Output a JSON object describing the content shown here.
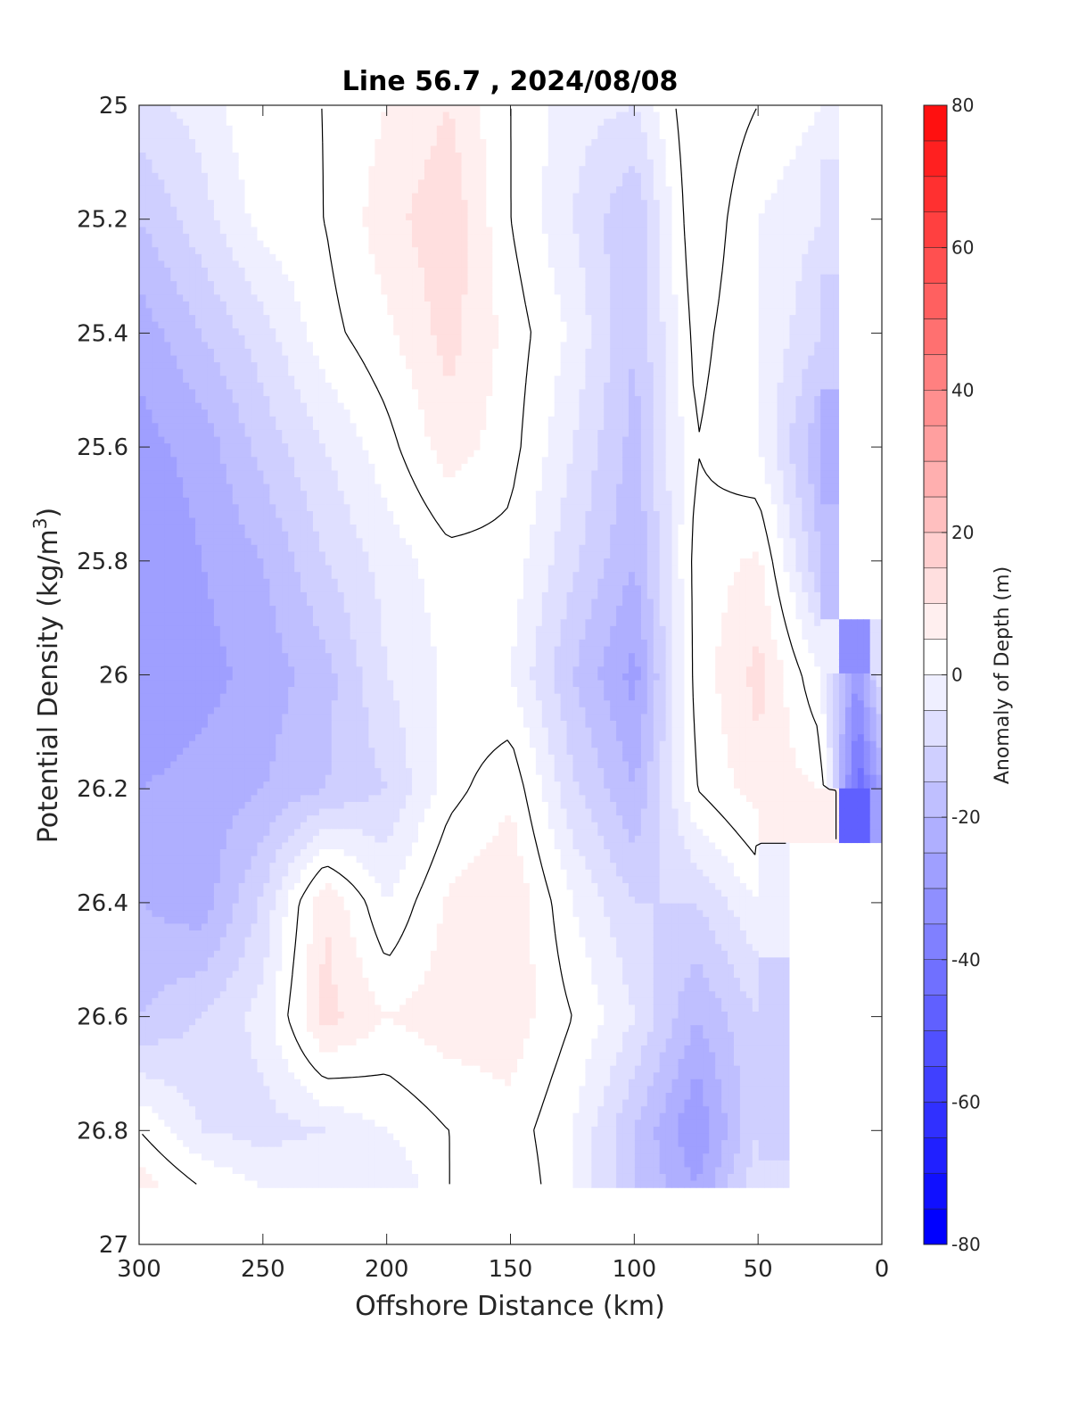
{
  "chart_data": {
    "type": "heatmap",
    "title": "Line 56.7 , 2024/08/08",
    "xlabel": "Offshore Distance (km)",
    "ylabel_main": "Potential Density (kg/m",
    "ylabel_sup": "3",
    "ylabel_close": ")",
    "xlim": [
      300,
      0
    ],
    "ylim": [
      25,
      27
    ],
    "x_ticks": [
      300,
      250,
      200,
      150,
      100,
      50,
      0
    ],
    "x_tick_labels": [
      "300",
      "250",
      "200",
      "150",
      "100",
      "50",
      "0"
    ],
    "y_ticks": [
      25,
      25.2,
      25.4,
      25.6,
      25.8,
      26,
      26.2,
      26.4,
      26.6,
      26.8,
      27
    ],
    "y_tick_labels": [
      "25",
      "25.2",
      "25.4",
      "25.6",
      "25.8",
      "26",
      "26.2",
      "26.4",
      "26.6",
      "26.8",
      "27"
    ],
    "data_bottom": 26.9,
    "colorbar": {
      "label": "Anomaly of Depth (m)",
      "range": [
        -80,
        80
      ],
      "step": 5,
      "ticks": [
        -80,
        -60,
        -40,
        -20,
        0,
        20,
        40,
        60,
        80
      ],
      "tick_labels": [
        "-80",
        "-60",
        "-40",
        "-20",
        "0",
        "20",
        "40",
        "60",
        "80"
      ],
      "neg_color": "#0000ff",
      "pos_color": "#ff0000",
      "zero_color": "#ffffff"
    },
    "zero_contour_color": "#000000",
    "grid": {
      "x": [
        300,
        275,
        250,
        225,
        200,
        175,
        150,
        125,
        100,
        75,
        50,
        25,
        10,
        0
      ],
      "y": [
        25,
        25.2,
        25.4,
        25.6,
        25.8,
        26,
        26.2,
        26.4,
        26.6,
        26.8,
        26.9
      ],
      "z": [
        [
          -12,
          -8,
          0,
          0,
          5,
          10,
          0,
          -8,
          -10,
          5,
          0,
          -5,
          null,
          null
        ],
        [
          -20,
          -12,
          -3,
          0,
          8,
          14,
          0,
          -10,
          -20,
          5,
          -5,
          -10,
          null,
          null
        ],
        [
          -28,
          -20,
          -12,
          -2,
          4,
          12,
          3,
          -6,
          -20,
          2,
          -5,
          -15,
          null,
          null
        ],
        [
          -32,
          -28,
          -18,
          -10,
          -2,
          8,
          2,
          -10,
          -22,
          0,
          -5,
          -25,
          null,
          null
        ],
        [
          -35,
          -30,
          -25,
          -15,
          -8,
          -2,
          -2,
          -14,
          -25,
          2,
          6,
          -20,
          null,
          null
        ],
        [
          -35,
          -32,
          -28,
          -22,
          -10,
          -4,
          -5,
          -20,
          -32,
          2,
          12,
          -5,
          -35,
          -10
        ],
        [
          -30,
          -28,
          -25,
          -20,
          -15,
          -2,
          4,
          -14,
          -25,
          0,
          8,
          5,
          -50,
          -30
        ],
        [
          -25,
          -28,
          -14,
          10,
          -5,
          6,
          10,
          -5,
          -15,
          -15,
          -5,
          null,
          null,
          null
        ],
        [
          -20,
          -15,
          -8,
          12,
          5,
          8,
          8,
          0,
          -10,
          -25,
          -15,
          null,
          null,
          null
        ],
        [
          0,
          -10,
          -12,
          -10,
          -5,
          0,
          3,
          -5,
          -20,
          -35,
          -15,
          null,
          null,
          null
        ],
        [
          8,
          0,
          -5,
          -5,
          -10,
          0,
          5,
          -5,
          -20,
          -30,
          -10,
          null,
          null,
          null
        ]
      ]
    }
  }
}
